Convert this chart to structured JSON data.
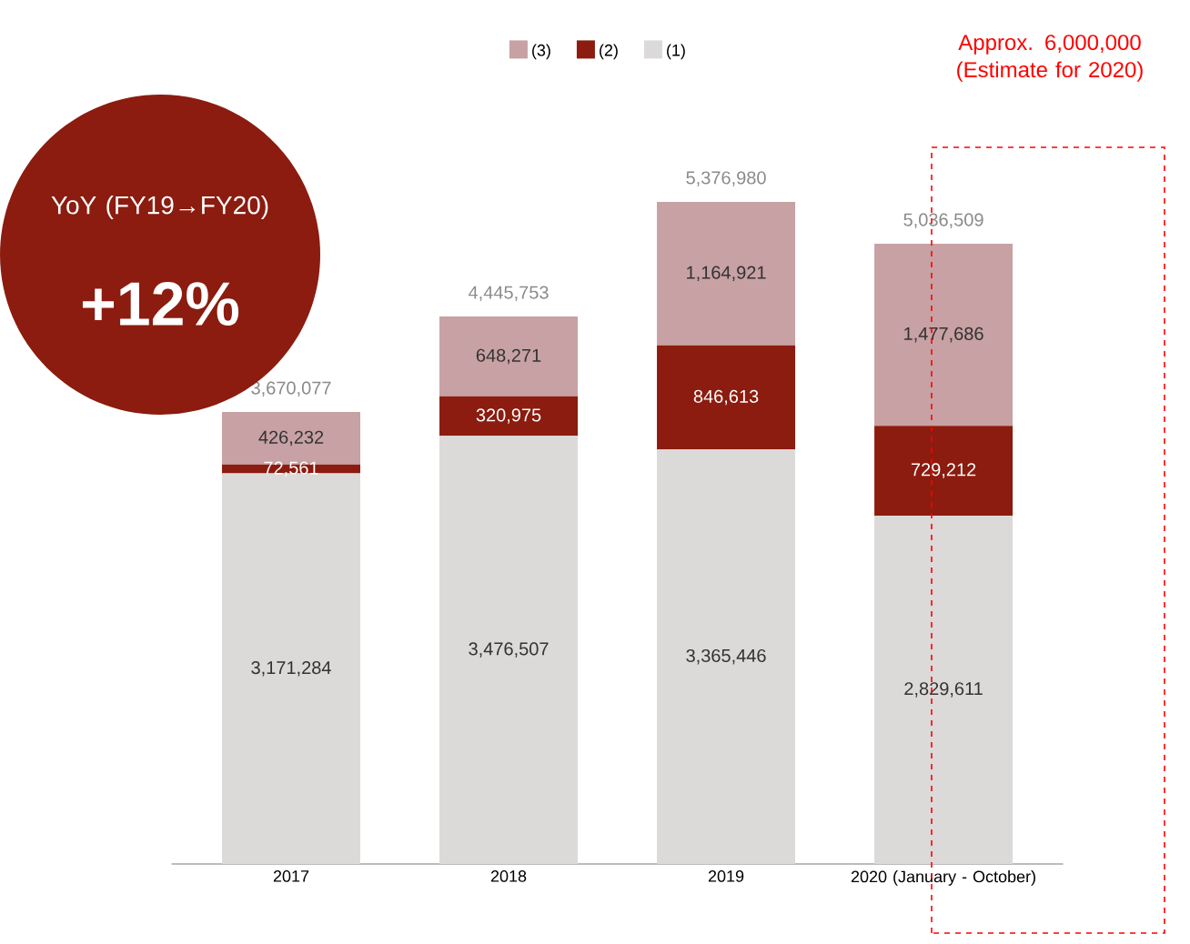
{
  "chart_data": {
    "type": "bar",
    "stacked": true,
    "categories": [
      "2017",
      "2018",
      "2019",
      "2020 (January - October)"
    ],
    "series": [
      {
        "name": "(1)",
        "color": "#dcd9d9",
        "values": [
          3171284,
          3476507,
          3365446,
          2829611
        ],
        "value_labels": [
          "3,171,284",
          "3,476,507",
          "3,365,446",
          "2,829,611"
        ]
      },
      {
        "name": "(2)",
        "color": "#8b1c0f",
        "values": [
          72561,
          320975,
          846613,
          729212
        ],
        "value_labels": [
          "72,561",
          "320,975",
          "846,613",
          "729,212"
        ]
      },
      {
        "name": "(3)",
        "color": "#c7a1a3",
        "values": [
          426232,
          648271,
          1164921,
          1477686
        ],
        "value_labels": [
          "426,232",
          "648,271",
          "1,164,921",
          "1,477,686"
        ]
      }
    ],
    "totals": [
      "3,670,077",
      "4,445,753",
      "5,376,980",
      "5,036,509"
    ],
    "legend": "top",
    "annotations": [
      "YoY (FY19→FY20)",
      "+12%",
      "Approx. 6,000,000 (Estimate for 2020)"
    ]
  }
}
